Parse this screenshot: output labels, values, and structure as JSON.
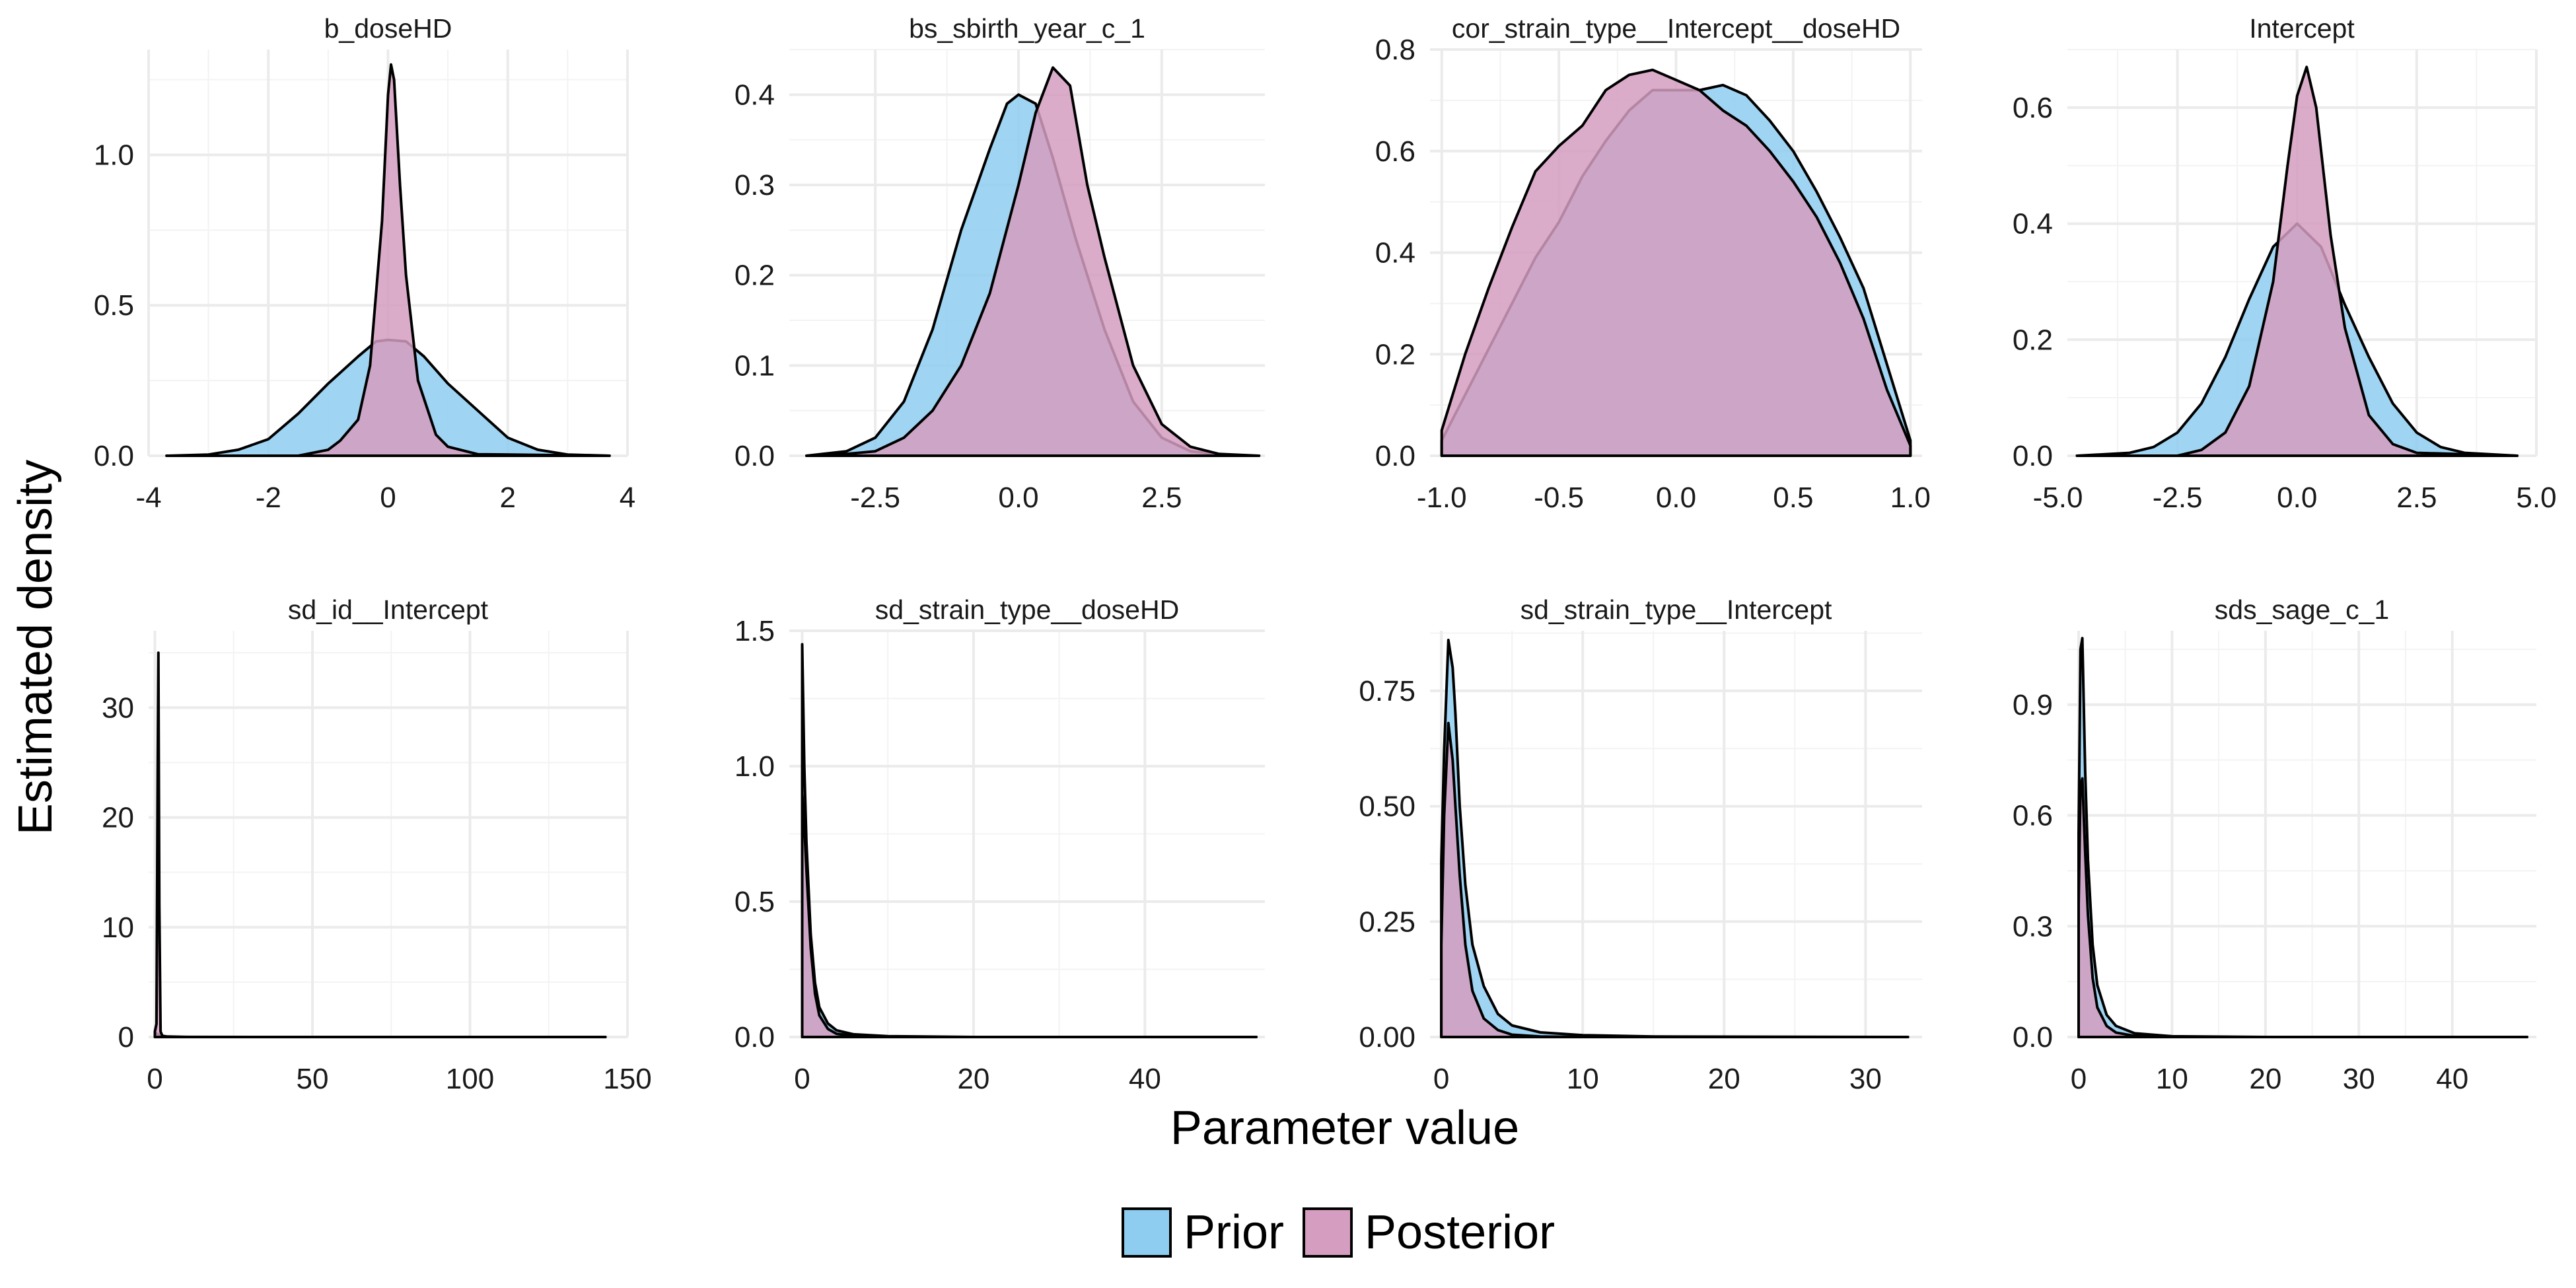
{
  "chart_data": {
    "type": "area",
    "xlabel": "Parameter value",
    "ylabel": "Estimated density",
    "legend": {
      "placement": "bottom",
      "entries": [
        {
          "name": "Prior",
          "color": "#8ecdf0"
        },
        {
          "name": "Posterior",
          "color": "#d59ec0"
        }
      ]
    },
    "grid": true,
    "fill_opacity": 0.85,
    "panels": [
      {
        "title": "b_doseHD",
        "xlim": [
          -4,
          4
        ],
        "ylim": [
          0,
          1.35
        ],
        "xticks": [
          -4,
          -2,
          0,
          2,
          4
        ],
        "xtick_labels": [
          "-4",
          "-2",
          "0",
          "2",
          "4"
        ],
        "yticks": [
          0,
          0.5,
          1.0
        ],
        "ytick_labels": [
          "0.0",
          "0.5",
          "1.0"
        ],
        "series": [
          {
            "name": "Prior",
            "x": [
              -3.7,
              -3,
              -2.5,
              -2,
              -1.5,
              -1,
              -0.5,
              -0.2,
              0,
              0.3,
              0.6,
              1,
              1.5,
              2,
              2.5,
              3,
              3.7
            ],
            "y": [
              0.0,
              0.004,
              0.02,
              0.055,
              0.14,
              0.24,
              0.33,
              0.38,
              0.385,
              0.38,
              0.33,
              0.24,
              0.15,
              0.06,
              0.02,
              0.004,
              0.0
            ]
          },
          {
            "name": "Posterior",
            "x": [
              -3.7,
              -1.5,
              -1,
              -0.8,
              -0.5,
              -0.3,
              -0.1,
              0,
              0.05,
              0.1,
              0.2,
              0.3,
              0.5,
              0.8,
              1,
              1.5,
              3.7
            ],
            "y": [
              0.0,
              0.0,
              0.02,
              0.05,
              0.12,
              0.3,
              0.78,
              1.2,
              1.3,
              1.25,
              0.9,
              0.6,
              0.25,
              0.07,
              0.03,
              0.005,
              0.0
            ]
          }
        ]
      },
      {
        "title": "bs_sbirth_year_c_1",
        "xlim": [
          -4,
          4.3
        ],
        "ylim": [
          0,
          0.45
        ],
        "xticks": [
          -2.5,
          0,
          2.5
        ],
        "xtick_labels": [
          "-2.5",
          "0.0",
          "2.5"
        ],
        "yticks": [
          0,
          0.1,
          0.2,
          0.3,
          0.4
        ],
        "ytick_labels": [
          "0.0",
          "0.1",
          "0.2",
          "0.3",
          "0.4"
        ],
        "series": [
          {
            "name": "Prior",
            "x": [
              -3.7,
              -3,
              -2.5,
              -2,
              -1.5,
              -1,
              -0.5,
              -0.2,
              0,
              0.3,
              0.6,
              1,
              1.5,
              2,
              2.5,
              3,
              3.7
            ],
            "y": [
              0.0,
              0.005,
              0.02,
              0.06,
              0.14,
              0.25,
              0.34,
              0.39,
              0.4,
              0.39,
              0.33,
              0.24,
              0.14,
              0.06,
              0.02,
              0.005,
              0.0
            ]
          },
          {
            "name": "Posterior",
            "x": [
              -3.7,
              -3,
              -2.5,
              -2,
              -1.5,
              -1,
              -0.5,
              0,
              0.3,
              0.6,
              0.9,
              1.2,
              1.5,
              2,
              2.5,
              3,
              3.5,
              4.2
            ],
            "y": [
              0.0,
              0.002,
              0.005,
              0.02,
              0.05,
              0.1,
              0.18,
              0.3,
              0.38,
              0.43,
              0.41,
              0.3,
              0.22,
              0.1,
              0.035,
              0.01,
              0.002,
              0.0
            ]
          }
        ]
      },
      {
        "title": "cor_strain_type__Intercept__doseHD",
        "xlim": [
          -1.05,
          1.05
        ],
        "ylim": [
          0,
          0.8
        ],
        "xticks": [
          -1,
          -0.5,
          0,
          0.5,
          1
        ],
        "xtick_labels": [
          "-1.0",
          "-0.5",
          "0.0",
          "0.5",
          "1.0"
        ],
        "yticks": [
          0,
          0.2,
          0.4,
          0.6,
          0.8
        ],
        "ytick_labels": [
          "0.0",
          "0.2",
          "0.4",
          "0.6",
          "0.8"
        ],
        "series": [
          {
            "name": "Prior",
            "x": [
              -1,
              -0.9,
              -0.8,
              -0.7,
              -0.6,
              -0.5,
              -0.4,
              -0.3,
              -0.2,
              -0.1,
              0,
              0.1,
              0.2,
              0.3,
              0.4,
              0.5,
              0.6,
              0.7,
              0.8,
              0.9,
              1
            ],
            "y": [
              0.03,
              0.12,
              0.21,
              0.3,
              0.39,
              0.46,
              0.55,
              0.62,
              0.68,
              0.72,
              0.72,
              0.72,
              0.73,
              0.71,
              0.66,
              0.6,
              0.52,
              0.43,
              0.33,
              0.18,
              0.03
            ]
          },
          {
            "name": "Posterior",
            "x": [
              -1,
              -0.9,
              -0.8,
              -0.7,
              -0.6,
              -0.5,
              -0.4,
              -0.3,
              -0.2,
              -0.1,
              0,
              0.1,
              0.2,
              0.3,
              0.4,
              0.5,
              0.6,
              0.7,
              0.8,
              0.9,
              1
            ],
            "y": [
              0.05,
              0.2,
              0.33,
              0.45,
              0.56,
              0.61,
              0.65,
              0.72,
              0.75,
              0.76,
              0.74,
              0.72,
              0.68,
              0.65,
              0.6,
              0.54,
              0.47,
              0.38,
              0.27,
              0.13,
              0.02
            ]
          }
        ]
      },
      {
        "title": "Intercept",
        "xlim": [
          -4.8,
          5.0
        ],
        "ylim": [
          0,
          0.7
        ],
        "xticks": [
          -5,
          -2.5,
          0,
          2.5,
          5
        ],
        "xtick_labels": [
          "-5.0",
          "-2.5",
          "0.0",
          "2.5",
          "5.0"
        ],
        "yticks": [
          0,
          0.2,
          0.4,
          0.6
        ],
        "ytick_labels": [
          "0.0",
          "0.2",
          "0.4",
          "0.6"
        ],
        "series": [
          {
            "name": "Prior",
            "x": [
              -4.6,
              -3.5,
              -3,
              -2.5,
              -2,
              -1.5,
              -1,
              -0.5,
              0,
              0.5,
              1,
              1.5,
              2,
              2.5,
              3,
              3.5,
              4.6
            ],
            "y": [
              0.0,
              0.005,
              0.015,
              0.04,
              0.09,
              0.17,
              0.27,
              0.36,
              0.4,
              0.36,
              0.26,
              0.17,
              0.09,
              0.04,
              0.015,
              0.005,
              0.0
            ]
          },
          {
            "name": "Posterior",
            "x": [
              -4.6,
              -2.5,
              -2,
              -1.5,
              -1,
              -0.5,
              -0.2,
              0,
              0.2,
              0.4,
              0.7,
              1,
              1.5,
              2,
              2.5,
              4.6
            ],
            "y": [
              0.0,
              0.0,
              0.01,
              0.04,
              0.12,
              0.3,
              0.5,
              0.62,
              0.67,
              0.6,
              0.38,
              0.22,
              0.07,
              0.02,
              0.005,
              0.0
            ]
          }
        ]
      },
      {
        "title": "sd_id__Intercept",
        "xlim": [
          -2,
          150
        ],
        "ylim": [
          0,
          37
        ],
        "xticks": [
          0,
          50,
          100,
          150
        ],
        "xtick_labels": [
          "0",
          "50",
          "100",
          "150"
        ],
        "yticks": [
          0,
          10,
          20,
          30
        ],
        "ytick_labels": [
          "0",
          "10",
          "20",
          "30"
        ],
        "series": [
          {
            "name": "Prior",
            "x": [
              0,
              0.5,
              1,
              2,
              4,
              10,
              50,
              100,
              143
            ],
            "y": [
              0.35,
              0.32,
              0.25,
              0.12,
              0.04,
              0.005,
              0.0,
              0.0,
              0.0
            ]
          },
          {
            "name": "Posterior",
            "x": [
              0,
              0.5,
              0.9,
              1.1,
              1.4,
              1.8,
              2.5,
              143
            ],
            "y": [
              0.5,
              1.2,
              25,
              35,
              12,
              0.5,
              0.0,
              0.0
            ]
          }
        ]
      },
      {
        "title": "sd_strain_type__doseHD",
        "xlim": [
          -1.5,
          54
        ],
        "ylim": [
          0,
          1.5
        ],
        "xticks": [
          0,
          20,
          40
        ],
        "xtick_labels": [
          "0",
          "20",
          "40"
        ],
        "yticks": [
          0,
          0.5,
          1.0,
          1.5
        ],
        "ytick_labels": [
          "0.0",
          "0.5",
          "1.0",
          "1.5"
        ],
        "series": [
          {
            "name": "Prior",
            "x": [
              0,
              0.25,
              0.5,
              1,
              1.5,
              2,
              3,
              4,
              6,
              10,
              20,
              53
            ],
            "y": [
              1.45,
              1.0,
              0.72,
              0.38,
              0.2,
              0.11,
              0.05,
              0.025,
              0.01,
              0.003,
              0.0,
              0.0
            ]
          },
          {
            "name": "Posterior",
            "x": [
              0,
              0.25,
              0.5,
              1,
              1.5,
              2,
              3,
              4,
              6,
              10,
              53
            ],
            "y": [
              0.9,
              0.78,
              0.62,
              0.33,
              0.16,
              0.08,
              0.03,
              0.012,
              0.004,
              0.0,
              0.0
            ]
          }
        ]
      },
      {
        "title": "sd_strain_type__Intercept",
        "xlim": [
          -0.8,
          34
        ],
        "ylim": [
          0,
          0.88
        ],
        "xticks": [
          0,
          10,
          20,
          30
        ],
        "xtick_labels": [
          "0",
          "10",
          "20",
          "30"
        ],
        "yticks": [
          0,
          0.25,
          0.5,
          0.75
        ],
        "ytick_labels": [
          "0.00",
          "0.25",
          "0.50",
          "0.75"
        ],
        "series": [
          {
            "name": "Prior",
            "x": [
              0,
              0.2,
              0.5,
              0.8,
              1,
              1.3,
              1.7,
              2.2,
              3,
              4,
              5,
              7,
              10,
              15,
              33
            ],
            "y": [
              0.38,
              0.62,
              0.86,
              0.8,
              0.7,
              0.5,
              0.33,
              0.2,
              0.11,
              0.05,
              0.025,
              0.01,
              0.004,
              0.001,
              0.0
            ]
          },
          {
            "name": "Posterior",
            "x": [
              0,
              0.2,
              0.5,
              0.8,
              1,
              1.3,
              1.7,
              2.2,
              3,
              4,
              5,
              7,
              10,
              33
            ],
            "y": [
              0.2,
              0.48,
              0.68,
              0.6,
              0.5,
              0.35,
              0.2,
              0.1,
              0.04,
              0.015,
              0.005,
              0.001,
              0.0,
              0.0
            ]
          }
        ]
      },
      {
        "title": "sds_sage_c_1",
        "xlim": [
          -1.2,
          49
        ],
        "ylim": [
          0,
          1.1
        ],
        "xticks": [
          0,
          10,
          20,
          30,
          40
        ],
        "xtick_labels": [
          "0",
          "10",
          "20",
          "30",
          "40"
        ],
        "yticks": [
          0,
          0.3,
          0.6,
          0.9
        ],
        "ytick_labels": [
          "0.0",
          "0.3",
          "0.6",
          "0.9"
        ],
        "series": [
          {
            "name": "Prior",
            "x": [
              0,
              0.2,
              0.4,
              0.7,
              1,
              1.5,
              2,
              3,
              4,
              6,
              10,
              20,
              48
            ],
            "y": [
              0.55,
              1.05,
              1.08,
              0.72,
              0.48,
              0.25,
              0.14,
              0.06,
              0.03,
              0.01,
              0.002,
              0.0,
              0.0
            ]
          },
          {
            "name": "Posterior",
            "x": [
              0,
              0.2,
              0.4,
              0.7,
              1,
              1.5,
              2,
              3,
              4,
              6,
              10,
              48
            ],
            "y": [
              0.36,
              0.68,
              0.7,
              0.5,
              0.33,
              0.16,
              0.08,
              0.03,
              0.012,
              0.003,
              0.0,
              0.0
            ]
          }
        ]
      }
    ]
  }
}
